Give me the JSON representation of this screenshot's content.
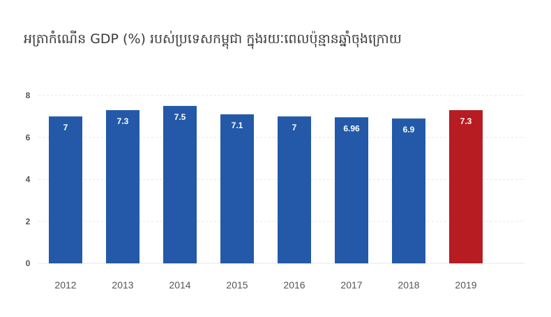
{
  "chart_data": {
    "type": "bar",
    "title": "អត្រាកំណើន GDP (%) របស់ប្រទេសកម្ពុជា ក្នុងរយៈពេលប៉ុន្មានឆ្នាំចុងក្រោយ",
    "categories": [
      "2012",
      "2013",
      "2014",
      "2015",
      "2016",
      "2017",
      "2018",
      "2019"
    ],
    "values": [
      7,
      7.3,
      7.5,
      7.1,
      7,
      6.96,
      6.9,
      7.3
    ],
    "data_labels": [
      "7",
      "7.3",
      "7.5",
      "7.1",
      "7",
      "6.96",
      "6.9",
      "7.3"
    ],
    "y_ticks": [
      "0",
      "2",
      "4",
      "6",
      "8"
    ],
    "ylim": [
      0,
      8
    ],
    "xlabel": "",
    "ylabel": "",
    "grid": true,
    "legend": "none",
    "colors": {
      "default": "#2359a8",
      "highlight": "#b71c22",
      "highlight_category": "2019",
      "grid": "#e6e6e6",
      "axis_text": "#555555"
    }
  }
}
